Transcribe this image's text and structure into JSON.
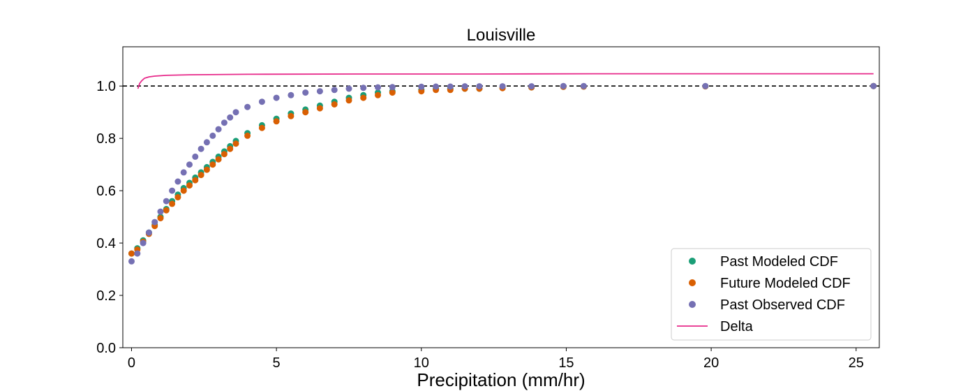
{
  "chart_data": {
    "type": "scatter",
    "title": "Louisville",
    "xlabel": "Precipitation (mm/hr)",
    "ylabel": "",
    "xlim": [
      -0.3,
      25.8
    ],
    "ylim": [
      0.0,
      1.15
    ],
    "xticks": [
      0,
      5,
      10,
      15,
      20,
      25
    ],
    "yticks": [
      0.0,
      0.2,
      0.4,
      0.6,
      0.8,
      1.0
    ],
    "xtick_labels": [
      "0",
      "5",
      "10",
      "15",
      "20",
      "25"
    ],
    "ytick_labels": [
      "0.0",
      "0.2",
      "0.4",
      "0.6",
      "0.8",
      "1.0"
    ],
    "grid": false,
    "legend_position": "lower-right",
    "reference_line": {
      "y": 1.0,
      "style": "dashed",
      "color": "#000000"
    },
    "series": [
      {
        "name": "Past Modeled CDF",
        "kind": "scatter",
        "color": "#1b9e77",
        "points": [
          [
            0.0,
            0.36
          ],
          [
            0.2,
            0.38
          ],
          [
            0.4,
            0.41
          ],
          [
            0.6,
            0.44
          ],
          [
            0.8,
            0.47
          ],
          [
            1.0,
            0.5
          ],
          [
            1.2,
            0.53
          ],
          [
            1.4,
            0.56
          ],
          [
            1.6,
            0.585
          ],
          [
            1.8,
            0.61
          ],
          [
            2.0,
            0.63
          ],
          [
            2.2,
            0.65
          ],
          [
            2.4,
            0.67
          ],
          [
            2.6,
            0.69
          ],
          [
            2.8,
            0.71
          ],
          [
            3.0,
            0.73
          ],
          [
            3.2,
            0.75
          ],
          [
            3.4,
            0.77
          ],
          [
            3.6,
            0.79
          ],
          [
            4.0,
            0.82
          ],
          [
            4.5,
            0.85
          ],
          [
            5.0,
            0.875
          ],
          [
            5.5,
            0.895
          ],
          [
            6.0,
            0.91
          ],
          [
            6.5,
            0.925
          ],
          [
            7.0,
            0.94
          ],
          [
            7.5,
            0.955
          ],
          [
            8.0,
            0.965
          ],
          [
            8.5,
            0.975
          ],
          [
            9.0,
            0.98
          ],
          [
            10.0,
            0.985
          ],
          [
            10.5,
            0.99
          ],
          [
            11.0,
            0.99
          ],
          [
            11.5,
            0.99
          ],
          [
            12.0,
            0.99
          ],
          [
            12.8,
            0.993
          ],
          [
            13.8,
            0.995
          ],
          [
            14.9,
            0.997
          ],
          [
            15.6,
            0.998
          ],
          [
            19.8,
            0.999
          ],
          [
            25.6,
            1.0
          ]
        ]
      },
      {
        "name": "Future Modeled CDF",
        "kind": "scatter",
        "color": "#d95f02",
        "points": [
          [
            0.0,
            0.36
          ],
          [
            0.2,
            0.375
          ],
          [
            0.4,
            0.405
          ],
          [
            0.6,
            0.435
          ],
          [
            0.8,
            0.465
          ],
          [
            1.0,
            0.495
          ],
          [
            1.2,
            0.525
          ],
          [
            1.4,
            0.55
          ],
          [
            1.6,
            0.575
          ],
          [
            1.8,
            0.6
          ],
          [
            2.0,
            0.62
          ],
          [
            2.2,
            0.64
          ],
          [
            2.4,
            0.66
          ],
          [
            2.6,
            0.68
          ],
          [
            2.8,
            0.7
          ],
          [
            3.0,
            0.72
          ],
          [
            3.2,
            0.74
          ],
          [
            3.4,
            0.76
          ],
          [
            3.6,
            0.78
          ],
          [
            4.0,
            0.81
          ],
          [
            4.5,
            0.84
          ],
          [
            5.0,
            0.865
          ],
          [
            5.5,
            0.885
          ],
          [
            6.0,
            0.9
          ],
          [
            6.5,
            0.915
          ],
          [
            7.0,
            0.93
          ],
          [
            7.5,
            0.945
          ],
          [
            8.0,
            0.955
          ],
          [
            8.5,
            0.965
          ],
          [
            9.0,
            0.975
          ],
          [
            10.0,
            0.98
          ],
          [
            10.5,
            0.985
          ],
          [
            11.0,
            0.985
          ],
          [
            11.5,
            0.99
          ],
          [
            12.0,
            0.99
          ],
          [
            12.8,
            0.992
          ],
          [
            13.8,
            0.995
          ],
          [
            14.9,
            0.997
          ],
          [
            15.6,
            0.998
          ],
          [
            19.8,
            0.999
          ],
          [
            25.6,
            1.0
          ]
        ]
      },
      {
        "name": "Past Observed CDF",
        "kind": "scatter",
        "color": "#7570b3",
        "points": [
          [
            0.0,
            0.33
          ],
          [
            0.2,
            0.36
          ],
          [
            0.4,
            0.4
          ],
          [
            0.6,
            0.44
          ],
          [
            0.8,
            0.48
          ],
          [
            1.0,
            0.52
          ],
          [
            1.2,
            0.56
          ],
          [
            1.4,
            0.6
          ],
          [
            1.6,
            0.635
          ],
          [
            1.8,
            0.67
          ],
          [
            2.0,
            0.7
          ],
          [
            2.2,
            0.73
          ],
          [
            2.4,
            0.76
          ],
          [
            2.6,
            0.785
          ],
          [
            2.8,
            0.81
          ],
          [
            3.0,
            0.835
          ],
          [
            3.2,
            0.86
          ],
          [
            3.4,
            0.88
          ],
          [
            3.6,
            0.9
          ],
          [
            4.0,
            0.92
          ],
          [
            4.5,
            0.94
          ],
          [
            5.0,
            0.955
          ],
          [
            5.5,
            0.965
          ],
          [
            6.0,
            0.975
          ],
          [
            6.5,
            0.98
          ],
          [
            7.0,
            0.985
          ],
          [
            7.5,
            0.99
          ],
          [
            8.0,
            0.993
          ],
          [
            8.5,
            0.995
          ],
          [
            9.0,
            0.996
          ],
          [
            10.0,
            0.997
          ],
          [
            10.5,
            0.998
          ],
          [
            11.0,
            0.998
          ],
          [
            11.5,
            0.999
          ],
          [
            12.0,
            0.999
          ],
          [
            12.8,
            0.999
          ],
          [
            13.8,
            0.999
          ],
          [
            14.9,
            1.0
          ],
          [
            15.6,
            1.0
          ],
          [
            19.8,
            1.0
          ],
          [
            25.6,
            1.0
          ]
        ]
      },
      {
        "name": "Delta",
        "kind": "line",
        "color": "#e7298a",
        "points": [
          [
            0.22,
            0.99
          ],
          [
            0.28,
            1.01
          ],
          [
            0.35,
            1.02
          ],
          [
            0.45,
            1.03
          ],
          [
            0.6,
            1.035
          ],
          [
            0.8,
            1.038
          ],
          [
            1.2,
            1.041
          ],
          [
            2.0,
            1.043
          ],
          [
            4.0,
            1.045
          ],
          [
            8.0,
            1.046
          ],
          [
            12.0,
            1.046
          ],
          [
            16.0,
            1.047
          ],
          [
            20.0,
            1.047
          ],
          [
            25.6,
            1.047
          ]
        ]
      }
    ]
  }
}
